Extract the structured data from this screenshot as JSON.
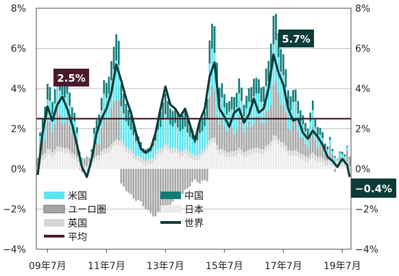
{
  "chart_data": {
    "type": "bar",
    "x_labels": [
      "09年7月",
      "11年7月",
      "13年7月",
      "15年7月",
      "17年7月",
      "19年7月"
    ],
    "x_tick_dates": [
      "2009-07",
      "2011-07",
      "2013-07",
      "2015-07",
      "2017-07",
      "2019-07"
    ],
    "y_ticks_left": [
      "8%",
      "6%",
      "4%",
      "2%",
      "0%",
      "−2%",
      "−4%"
    ],
    "y_ticks_right": [
      "8%",
      "6%",
      "4%",
      "2%",
      "0%",
      "−2%",
      "−4%"
    ],
    "y_tick_values": [
      8,
      6,
      4,
      2,
      0,
      -2,
      -4
    ],
    "ylim": [
      -4,
      8
    ],
    "date_range": [
      "2009-03",
      "2019-10"
    ],
    "legend": [
      {
        "label": "米国",
        "symbol": "bar",
        "color": "#5ce6ef"
      },
      {
        "label": "中国",
        "symbol": "bar",
        "color": "#137b77"
      },
      {
        "label": "ユーロ圏",
        "symbol": "bar",
        "color": "#a6a6a6"
      },
      {
        "label": "日本",
        "symbol": "bar",
        "color": "#ebebeb"
      },
      {
        "label": "英国",
        "symbol": "bar",
        "color": "#d6d6d6"
      },
      {
        "label": "世界",
        "symbol": "line",
        "color": "#0c3b38"
      },
      {
        "label": "平均",
        "symbol": "line",
        "color": "#4a1a2c"
      }
    ],
    "average": 2.5,
    "callouts": [
      {
        "text": "2.5%",
        "color": "#4a1a2c"
      },
      {
        "text": "5.7%",
        "color": "#0c3b38"
      },
      {
        "text": "−0.4%",
        "color": "#0c3b38"
      }
    ],
    "series": [
      {
        "name": "世界",
        "values": [
          [
            "2009-03",
            -0.3
          ],
          [
            "2009-05",
            1.8
          ],
          [
            "2009-07",
            3.1
          ],
          [
            "2009-09",
            2.4
          ],
          [
            "2009-11",
            3.2
          ],
          [
            "2010-01",
            3.6
          ],
          [
            "2010-03",
            3.0
          ],
          [
            "2010-05",
            2.2
          ],
          [
            "2010-07",
            1.2
          ],
          [
            "2010-09",
            0.1
          ],
          [
            "2010-11",
            -0.4
          ],
          [
            "2011-01",
            0.5
          ],
          [
            "2011-03",
            1.8
          ],
          [
            "2011-05",
            2.5
          ],
          [
            "2011-07",
            3.0
          ],
          [
            "2011-09",
            3.8
          ],
          [
            "2011-11",
            5.2
          ],
          [
            "2012-01",
            4.4
          ],
          [
            "2012-03",
            3.5
          ],
          [
            "2012-05",
            2.8
          ],
          [
            "2012-07",
            1.8
          ],
          [
            "2012-09",
            1.0
          ],
          [
            "2012-11",
            0.8
          ],
          [
            "2013-01",
            1.0
          ],
          [
            "2013-03",
            1.8
          ],
          [
            "2013-05",
            3.0
          ],
          [
            "2013-07",
            4.1
          ],
          [
            "2013-09",
            3.2
          ],
          [
            "2013-11",
            3.0
          ],
          [
            "2014-01",
            2.6
          ],
          [
            "2014-03",
            3.0
          ],
          [
            "2014-05",
            2.2
          ],
          [
            "2014-07",
            1.4
          ],
          [
            "2014-09",
            2.4
          ],
          [
            "2014-11",
            3.0
          ],
          [
            "2015-01",
            4.6
          ],
          [
            "2015-03",
            5.3
          ],
          [
            "2015-05",
            3.0
          ],
          [
            "2015-07",
            2.6
          ],
          [
            "2015-09",
            2.1
          ],
          [
            "2015-11",
            2.8
          ],
          [
            "2016-01",
            3.0
          ],
          [
            "2016-03",
            2.3
          ],
          [
            "2016-05",
            2.7
          ],
          [
            "2016-07",
            3.5
          ],
          [
            "2016-09",
            2.8
          ],
          [
            "2016-11",
            3.0
          ],
          [
            "2017-01",
            4.0
          ],
          [
            "2017-03",
            5.7
          ],
          [
            "2017-05",
            4.8
          ],
          [
            "2017-07",
            4.2
          ],
          [
            "2017-09",
            3.0
          ],
          [
            "2017-11",
            2.4
          ],
          [
            "2018-01",
            2.5
          ],
          [
            "2018-03",
            1.8
          ],
          [
            "2018-05",
            1.5
          ],
          [
            "2018-07",
            1.9
          ],
          [
            "2018-09",
            1.6
          ],
          [
            "2018-11",
            1.2
          ],
          [
            "2019-01",
            0.6
          ],
          [
            "2019-03",
            0.4
          ],
          [
            "2019-05",
            0.1
          ],
          [
            "2019-07",
            0.5
          ],
          [
            "2019-09",
            0.2
          ],
          [
            "2019-10",
            -0.4
          ]
        ]
      }
    ]
  }
}
